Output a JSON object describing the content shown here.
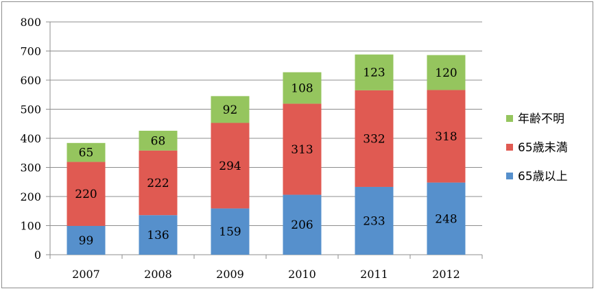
{
  "chart_data": {
    "type": "bar",
    "stacked": true,
    "categories": [
      "2007",
      "2008",
      "2009",
      "2010",
      "2011",
      "2012"
    ],
    "series": [
      {
        "name": "65歳以上",
        "color": "#5690cc",
        "values": [
          99,
          136,
          159,
          206,
          233,
          248
        ]
      },
      {
        "name": "65歳未満",
        "color": "#e05a52",
        "values": [
          220,
          222,
          294,
          313,
          332,
          318
        ]
      },
      {
        "name": "年齢不明",
        "color": "#95c55e",
        "values": [
          65,
          68,
          92,
          108,
          123,
          120
        ]
      }
    ],
    "ylim": [
      0,
      800
    ],
    "yticks": [
      "0",
      "100",
      "200",
      "300",
      "400",
      "500",
      "600",
      "700",
      "800"
    ],
    "grid": true,
    "legend_position": "right",
    "legend_order": [
      "年齢不明",
      "65歳未満",
      "65歳以上"
    ],
    "xlabel": "",
    "ylabel": "",
    "title": ""
  }
}
